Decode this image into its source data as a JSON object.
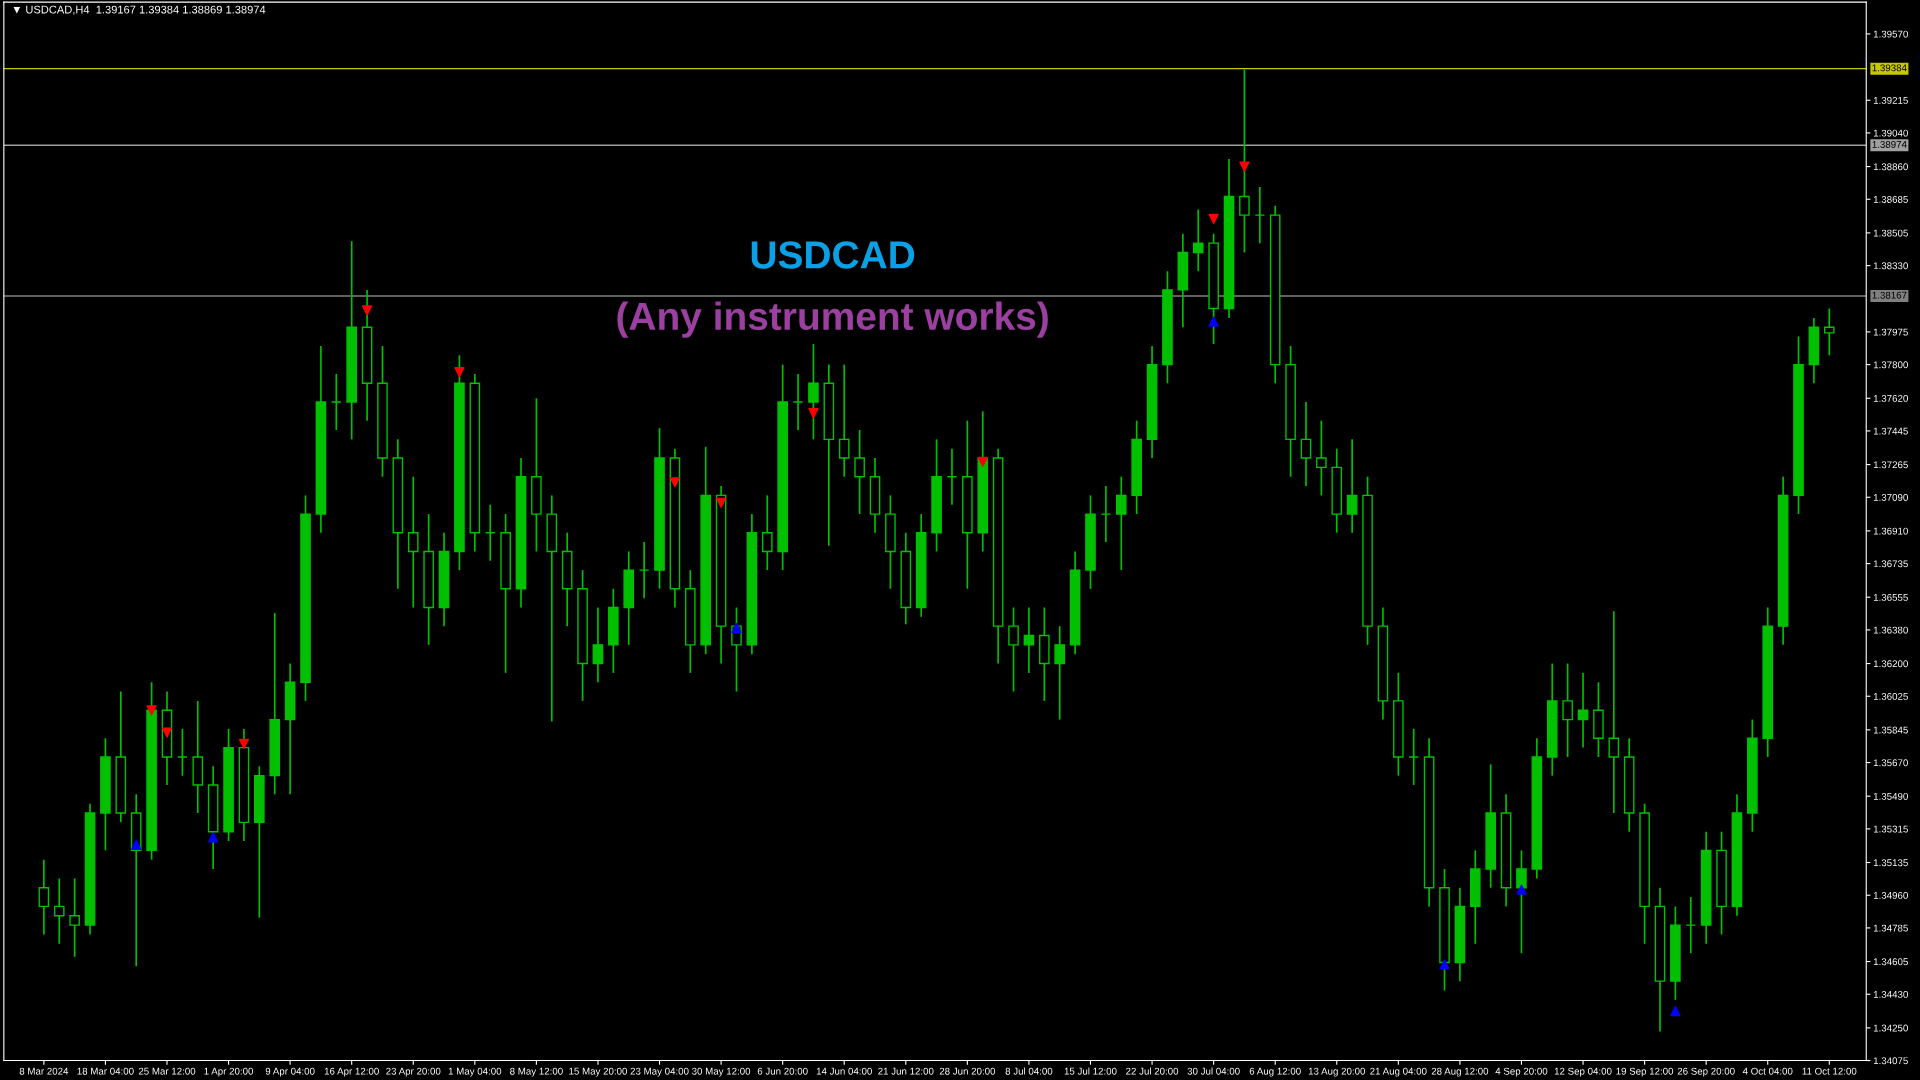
{
  "chart_data": {
    "type": "candlestick",
    "title": "▼ USDCAD,H4  1.39167 1.39384 1.38869 1.38974",
    "annotations": [
      "USDCAD",
      "(Any instrument works)"
    ],
    "categories": [
      "8 Mar 2024",
      null,
      null,
      null,
      "18 Mar 04:00",
      null,
      null,
      null,
      "25 Mar 12:00",
      null,
      null,
      null,
      "1 Apr 20:00",
      null,
      null,
      null,
      "9 Apr 04:00",
      null,
      null,
      null,
      "16 Apr 12:00",
      null,
      null,
      null,
      "23 Apr 20:00",
      null,
      null,
      null,
      "1 May 04:00",
      null,
      null,
      null,
      "8 May 12:00",
      null,
      null,
      null,
      "15 May 20:00",
      null,
      null,
      null,
      "23 May 04:00",
      null,
      null,
      null,
      "30 May 12:00",
      null,
      null,
      null,
      "6 Jun 20:00",
      null,
      null,
      null,
      "14 Jun 04:00",
      null,
      null,
      null,
      "21 Jun 12:00",
      null,
      null,
      null,
      "28 Jun 20:00",
      null,
      null,
      null,
      "8 Jul 04:00",
      null,
      null,
      null,
      "15 Jul 12:00",
      null,
      null,
      null,
      "22 Jul 20:00",
      null,
      null,
      null,
      "30 Jul 04:00",
      null,
      null,
      null,
      "6 Aug 12:00",
      null,
      null,
      null,
      "13 Aug 20:00",
      null,
      null,
      null,
      "21 Aug 04:00",
      null,
      null,
      null,
      "28 Aug 12:00",
      null,
      null,
      null,
      "4 Sep 20:00",
      null,
      null,
      null,
      "12 Sep 04:00",
      null,
      null,
      null,
      "19 Sep 12:00",
      null,
      null,
      null,
      "26 Sep 20:00",
      null,
      null,
      null,
      "4 Oct 04:00",
      null,
      null,
      null,
      "11 Oct 12:00"
    ],
    "series": [
      {
        "color": "#00c000",
        "ohlc": [
          [
            1.35,
            1.3515,
            1.3475,
            1.349
          ],
          [
            1.349,
            1.3505,
            1.347,
            1.3485
          ],
          [
            1.3485,
            1.3505,
            1.3463,
            1.348
          ],
          [
            1.348,
            1.3545,
            1.3475,
            1.354
          ],
          [
            1.354,
            1.358,
            1.352,
            1.357
          ],
          [
            1.357,
            1.3605,
            1.3535,
            1.354
          ],
          [
            1.354,
            1.355,
            1.3458,
            1.352
          ],
          [
            1.352,
            1.361,
            1.3515,
            1.3595
          ],
          [
            1.3595,
            1.3605,
            1.3555,
            1.357
          ],
          [
            1.357,
            1.3585,
            1.356,
            1.357
          ],
          [
            1.357,
            1.36,
            1.354,
            1.3555
          ],
          [
            1.3555,
            1.3565,
            1.351,
            1.353
          ],
          [
            1.353,
            1.3585,
            1.3525,
            1.3575
          ],
          [
            1.3575,
            1.3585,
            1.3525,
            1.3535
          ],
          [
            1.3535,
            1.3565,
            1.3484,
            1.356
          ],
          [
            1.356,
            1.3647,
            1.355,
            1.359
          ],
          [
            1.359,
            1.362,
            1.355,
            1.361
          ],
          [
            1.361,
            1.371,
            1.36,
            1.37
          ],
          [
            1.37,
            1.379,
            1.369,
            1.376
          ],
          [
            1.376,
            1.3775,
            1.3745,
            1.376
          ],
          [
            1.376,
            1.3846,
            1.374,
            1.38
          ],
          [
            1.38,
            1.382,
            1.375,
            1.377
          ],
          [
            1.377,
            1.379,
            1.372,
            1.373
          ],
          [
            1.373,
            1.374,
            1.366,
            1.369
          ],
          [
            1.369,
            1.372,
            1.365,
            1.368
          ],
          [
            1.368,
            1.37,
            1.363,
            1.365
          ],
          [
            1.365,
            1.369,
            1.364,
            1.368
          ],
          [
            1.368,
            1.3785,
            1.367,
            1.377
          ],
          [
            1.377,
            1.3775,
            1.368,
            1.369
          ],
          [
            1.369,
            1.3705,
            1.3675,
            1.369
          ],
          [
            1.369,
            1.37,
            1.3615,
            1.366
          ],
          [
            1.366,
            1.373,
            1.365,
            1.372
          ],
          [
            1.372,
            1.3762,
            1.368,
            1.37
          ],
          [
            1.37,
            1.371,
            1.3589,
            1.368
          ],
          [
            1.368,
            1.369,
            1.364,
            1.366
          ],
          [
            1.366,
            1.367,
            1.36,
            1.362
          ],
          [
            1.362,
            1.365,
            1.361,
            1.363
          ],
          [
            1.363,
            1.366,
            1.3615,
            1.365
          ],
          [
            1.365,
            1.368,
            1.363,
            1.367
          ],
          [
            1.367,
            1.3685,
            1.3655,
            1.367
          ],
          [
            1.367,
            1.3746,
            1.366,
            1.373
          ],
          [
            1.373,
            1.3735,
            1.365,
            1.366
          ],
          [
            1.366,
            1.367,
            1.3615,
            1.363
          ],
          [
            1.363,
            1.3736,
            1.3625,
            1.371
          ],
          [
            1.371,
            1.3715,
            1.362,
            1.364
          ],
          [
            1.364,
            1.365,
            1.3605,
            1.363
          ],
          [
            1.363,
            1.37,
            1.3625,
            1.369
          ],
          [
            1.369,
            1.371,
            1.367,
            1.368
          ],
          [
            1.368,
            1.378,
            1.367,
            1.376
          ],
          [
            1.376,
            1.3775,
            1.3745,
            1.376
          ],
          [
            1.376,
            1.3791,
            1.374,
            1.377
          ],
          [
            1.377,
            1.378,
            1.3683,
            1.374
          ],
          [
            1.374,
            1.378,
            1.372,
            1.373
          ],
          [
            1.373,
            1.3745,
            1.37,
            1.372
          ],
          [
            1.372,
            1.373,
            1.369,
            1.37
          ],
          [
            1.37,
            1.371,
            1.366,
            1.368
          ],
          [
            1.368,
            1.369,
            1.3641,
            1.365
          ],
          [
            1.365,
            1.37,
            1.3645,
            1.369
          ],
          [
            1.369,
            1.374,
            1.368,
            1.372
          ],
          [
            1.372,
            1.3735,
            1.3705,
            1.372
          ],
          [
            1.372,
            1.375,
            1.366,
            1.369
          ],
          [
            1.369,
            1.3755,
            1.368,
            1.373
          ],
          [
            1.373,
            1.3735,
            1.362,
            1.364
          ],
          [
            1.364,
            1.365,
            1.3605,
            1.363
          ],
          [
            1.363,
            1.365,
            1.3615,
            1.3635
          ],
          [
            1.3635,
            1.365,
            1.36,
            1.362
          ],
          [
            1.362,
            1.364,
            1.359,
            1.363
          ],
          [
            1.363,
            1.368,
            1.3625,
            1.367
          ],
          [
            1.367,
            1.371,
            1.366,
            1.37
          ],
          [
            1.37,
            1.3715,
            1.3685,
            1.37
          ],
          [
            1.37,
            1.372,
            1.367,
            1.371
          ],
          [
            1.371,
            1.375,
            1.37,
            1.374
          ],
          [
            1.374,
            1.379,
            1.373,
            1.378
          ],
          [
            1.378,
            1.383,
            1.377,
            1.382
          ],
          [
            1.382,
            1.385,
            1.38,
            1.384
          ],
          [
            1.384,
            1.3863,
            1.383,
            1.3845
          ],
          [
            1.3845,
            1.385,
            1.3791,
            1.381
          ],
          [
            1.381,
            1.389,
            1.3805,
            1.387
          ],
          [
            1.387,
            1.3938,
            1.384,
            1.386
          ],
          [
            1.386,
            1.3875,
            1.3845,
            1.386
          ],
          [
            1.386,
            1.3865,
            1.377,
            1.378
          ],
          [
            1.378,
            1.379,
            1.372,
            1.374
          ],
          [
            1.374,
            1.376,
            1.3715,
            1.373
          ],
          [
            1.373,
            1.375,
            1.371,
            1.3725
          ],
          [
            1.3725,
            1.3735,
            1.369,
            1.37
          ],
          [
            1.37,
            1.374,
            1.369,
            1.371
          ],
          [
            1.371,
            1.372,
            1.363,
            1.364
          ],
          [
            1.364,
            1.365,
            1.359,
            1.36
          ],
          [
            1.36,
            1.3615,
            1.356,
            1.357
          ],
          [
            1.357,
            1.3585,
            1.3555,
            1.357
          ],
          [
            1.357,
            1.358,
            1.349,
            1.35
          ],
          [
            1.35,
            1.351,
            1.3445,
            1.346
          ],
          [
            1.346,
            1.35,
            1.345,
            1.349
          ],
          [
            1.349,
            1.352,
            1.347,
            1.351
          ],
          [
            1.351,
            1.3566,
            1.35,
            1.354
          ],
          [
            1.354,
            1.355,
            1.349,
            1.35
          ],
          [
            1.35,
            1.352,
            1.3465,
            1.351
          ],
          [
            1.351,
            1.358,
            1.3505,
            1.357
          ],
          [
            1.357,
            1.362,
            1.356,
            1.36
          ],
          [
            1.36,
            1.362,
            1.357,
            1.359
          ],
          [
            1.359,
            1.3615,
            1.3575,
            1.3595
          ],
          [
            1.3595,
            1.361,
            1.357,
            1.358
          ],
          [
            1.358,
            1.3648,
            1.354,
            1.357
          ],
          [
            1.357,
            1.358,
            1.353,
            1.354
          ],
          [
            1.354,
            1.3545,
            1.347,
            1.349
          ],
          [
            1.349,
            1.35,
            1.3423,
            1.345
          ],
          [
            1.345,
            1.349,
            1.344,
            1.348
          ],
          [
            1.348,
            1.3495,
            1.3465,
            1.348
          ],
          [
            1.348,
            1.353,
            1.347,
            1.352
          ],
          [
            1.352,
            1.353,
            1.3475,
            1.349
          ],
          [
            1.349,
            1.355,
            1.3485,
            1.354
          ],
          [
            1.354,
            1.359,
            1.353,
            1.358
          ],
          [
            1.358,
            1.365,
            1.357,
            1.364
          ],
          [
            1.364,
            1.372,
            1.363,
            1.371
          ],
          [
            1.371,
            1.3795,
            1.37,
            1.378
          ],
          [
            1.378,
            1.3805,
            1.377,
            1.38
          ],
          [
            1.38,
            1.381,
            1.3785,
            1.3797
          ]
        ]
      },
      {
        "type": "scatter",
        "color": "#ff0000",
        "marker": "triangle_down",
        "values": [
          null,
          null,
          null,
          null,
          null,
          null,
          null,
          1.3595,
          1.3583,
          null,
          null,
          null,
          null,
          1.3577,
          null,
          null,
          null,
          null,
          null,
          null,
          null,
          1.3809,
          null,
          null,
          null,
          null,
          null,
          1.3776,
          null,
          null,
          null,
          null,
          null,
          null,
          null,
          null,
          null,
          null,
          null,
          null,
          null,
          1.3717,
          null,
          null,
          1.3706,
          null,
          null,
          null,
          null,
          null,
          1.3754,
          null,
          null,
          null,
          null,
          null,
          null,
          null,
          null,
          null,
          null,
          1.3728,
          null,
          null,
          null,
          null,
          null,
          null,
          null,
          null,
          null,
          null,
          null,
          null,
          null,
          null,
          1.3858,
          null,
          1.3886,
          null,
          null,
          null,
          null,
          null,
          null,
          null,
          null,
          null,
          null,
          null,
          null,
          null,
          null,
          null,
          null,
          null,
          null,
          null,
          null,
          null,
          null,
          null,
          null,
          null,
          null,
          null,
          null,
          null,
          null,
          null,
          null,
          null,
          null,
          null,
          null,
          null,
          null
        ]
      },
      {
        "type": "scatter",
        "color": "#0000ff",
        "marker": "triangle",
        "values": [
          null,
          null,
          null,
          null,
          null,
          null,
          1.3523,
          null,
          null,
          null,
          null,
          1.3527,
          null,
          null,
          null,
          null,
          null,
          null,
          null,
          null,
          null,
          null,
          null,
          null,
          null,
          null,
          null,
          null,
          null,
          null,
          null,
          null,
          null,
          null,
          null,
          null,
          null,
          null,
          null,
          null,
          null,
          null,
          null,
          null,
          null,
          1.3639,
          null,
          null,
          null,
          null,
          null,
          null,
          null,
          null,
          null,
          null,
          null,
          null,
          null,
          null,
          null,
          null,
          null,
          null,
          null,
          null,
          null,
          null,
          null,
          null,
          null,
          null,
          null,
          null,
          null,
          null,
          1.3803,
          null,
          null,
          null,
          null,
          null,
          null,
          null,
          null,
          null,
          null,
          null,
          null,
          null,
          null,
          1.3459,
          null,
          null,
          null,
          null,
          1.3499,
          null,
          null,
          null,
          null,
          null,
          null,
          null,
          null,
          null,
          1.3434,
          null,
          null,
          null,
          null,
          null,
          null,
          null,
          null,
          null,
          null
        ]
      }
    ],
    "ylim": [
      1.34075,
      1.3974
    ],
    "yticks": [
      {
        "value": 1.34075,
        "label": "1.34075"
      },
      {
        "value": 1.3425,
        "label": "1.34250"
      },
      {
        "value": 1.3443,
        "label": "1.34430"
      },
      {
        "value": 1.34605,
        "label": "1.34605"
      },
      {
        "value": 1.34785,
        "label": "1.34785"
      },
      {
        "value": 1.3496,
        "label": "1.34960"
      },
      {
        "value": 1.35135,
        "label": "1.35135"
      },
      {
        "value": 1.35315,
        "label": "1.35315"
      },
      {
        "value": 1.3549,
        "label": "1.35490"
      },
      {
        "value": 1.3567,
        "label": "1.35670"
      },
      {
        "value": 1.35845,
        "label": "1.35845"
      },
      {
        "value": 1.36025,
        "label": "1.36025"
      },
      {
        "value": 1.362,
        "label": "1.36200"
      },
      {
        "value": 1.3638,
        "label": "1.36380"
      },
      {
        "value": 1.36555,
        "label": "1.36555"
      },
      {
        "value": 1.36735,
        "label": "1.36735"
      },
      {
        "value": 1.3691,
        "label": "1.36910"
      },
      {
        "value": 1.3709,
        "label": "1.37090"
      },
      {
        "value": 1.37265,
        "label": "1.37265"
      },
      {
        "value": 1.37445,
        "label": "1.37445"
      },
      {
        "value": 1.3762,
        "label": "1.37620"
      },
      {
        "value": 1.378,
        "label": "1.37800"
      },
      {
        "value": 1.37975,
        "label": "1.37975"
      },
      {
        "value": 1.3833,
        "label": "1.38330"
      },
      {
        "value": 1.38505,
        "label": "1.38505"
      },
      {
        "value": 1.38685,
        "label": "1.38685"
      },
      {
        "value": 1.3886,
        "label": "1.38860"
      },
      {
        "value": 1.3904,
        "label": "1.39040"
      },
      {
        "value": 1.39215,
        "label": "1.39215"
      },
      {
        "value": 1.3957,
        "label": "1.39570"
      }
    ],
    "ref_lines": [
      {
        "axis": "y",
        "value": 1.39384,
        "label": "1.39384",
        "color": "#c8c800"
      },
      {
        "axis": "y",
        "value": 1.38974,
        "label": "1.38974",
        "color": "#a0a0a0"
      },
      {
        "axis": "y",
        "value": 1.38167,
        "label": "1.38167",
        "color": "#808080"
      }
    ],
    "grid": false,
    "legend": false
  }
}
